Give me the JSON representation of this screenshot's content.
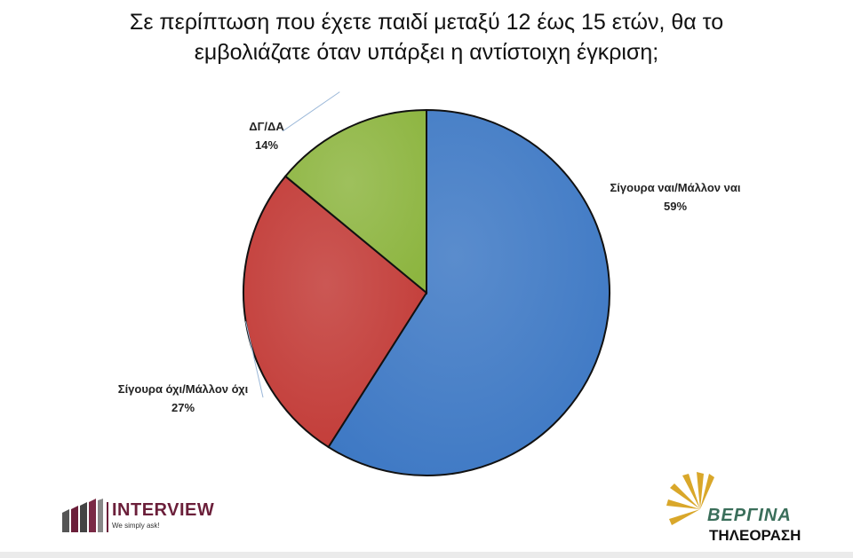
{
  "chart_data": {
    "type": "pie",
    "title_lines": [
      "Σε περίπτωση που έχετε παιδί μεταξύ 12  έως 15 ετών, θα το",
      "εμβολιάζατε όταν υπάρξει η αντίστοιχη έγκριση;"
    ],
    "slices": [
      {
        "label": "Σίγουρα ναι/Μάλλον ναι",
        "value": 59,
        "value_text": "59%",
        "color": "#3d78c4"
      },
      {
        "label": "Σίγουρα όχι/Μάλλον όχι",
        "value": 27,
        "value_text": "27%",
        "color": "#c23a36"
      },
      {
        "label": "ΔΓ/ΔΑ",
        "value": 14,
        "value_text": "14%",
        "color": "#8db540"
      }
    ],
    "start_angle": "12 o'clock, clockwise"
  },
  "logos": {
    "left": {
      "name": "INTERVIEW",
      "tagline": "We simply ask!"
    },
    "right": {
      "brand": "ΒΕΡΓΙΝΑ",
      "sub": "ΤΗΛΕΟΡΑΣΗ"
    }
  }
}
